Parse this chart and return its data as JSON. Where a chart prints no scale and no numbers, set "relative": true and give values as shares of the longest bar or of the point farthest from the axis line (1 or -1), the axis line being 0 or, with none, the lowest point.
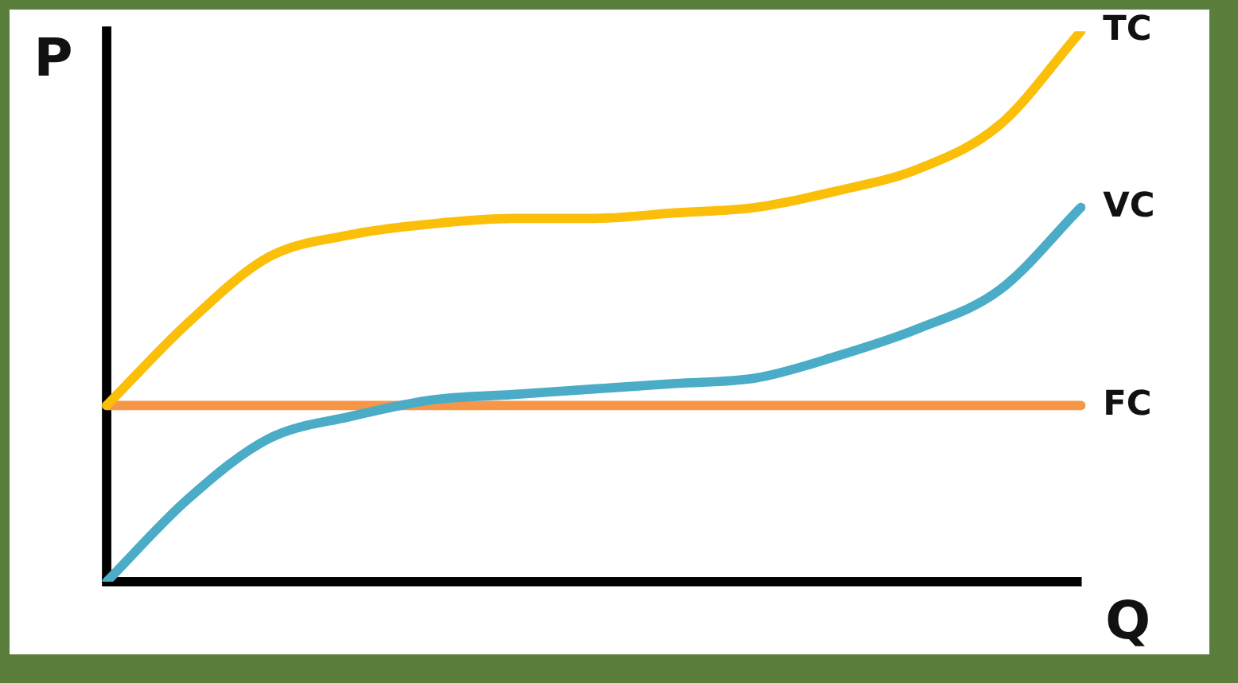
{
  "chart_data": {
    "type": "line",
    "relative": true,
    "xlabel": "Q",
    "ylabel": "P",
    "categories": [
      null,
      null,
      null,
      null,
      null,
      null,
      null,
      null,
      null,
      null,
      null,
      null,
      null
    ],
    "series": [
      {
        "name": "TC",
        "color": "#fbbf0a",
        "values": [
          0.32,
          0.47,
          0.59,
          0.63,
          0.65,
          0.66,
          0.66,
          0.67,
          0.68,
          0.71,
          0.75,
          0.83,
          1.0
        ]
      },
      {
        "name": "VC",
        "color": "#4aacc6",
        "values": [
          0,
          0.15,
          0.26,
          0.3,
          0.33,
          0.34,
          0.35,
          0.36,
          0.37,
          0.41,
          0.46,
          0.53,
          0.68
        ]
      },
      {
        "name": "FC",
        "color": "#f79646",
        "values": [
          0.32,
          0.32,
          0.32,
          0.32,
          0.32,
          0.32,
          0.32,
          0.32,
          0.32,
          0.32,
          0.32,
          0.32,
          0.32
        ]
      }
    ]
  }
}
